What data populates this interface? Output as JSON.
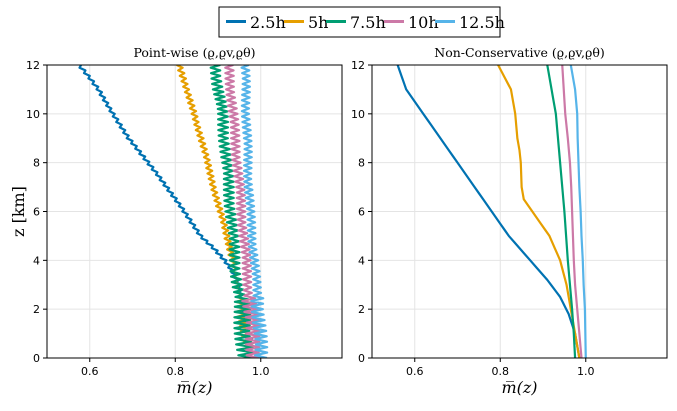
{
  "legend": {
    "entries": [
      {
        "label": "2.5h",
        "color": "#0072b2"
      },
      {
        "label": "5h",
        "color": "#e69f00"
      },
      {
        "label": "7.5h",
        "color": "#009e73"
      },
      {
        "label": "10h",
        "color": "#cc79a7"
      },
      {
        "label": "12.5h",
        "color": "#56b4e9"
      }
    ]
  },
  "shared_axes": {
    "xlabel": "m̅(z)",
    "ylabel": "z [km]",
    "xlim": [
      0.5,
      1.19
    ],
    "ylim": [
      0,
      12
    ],
    "xticks": [
      "0.6",
      "0.8",
      "1.0"
    ],
    "xtick_values": [
      0.6,
      0.8,
      1.0
    ],
    "yticks": [
      "0",
      "2",
      "4",
      "6",
      "8",
      "10",
      "12"
    ],
    "ytick_values": [
      0,
      2,
      4,
      6,
      8,
      10,
      12
    ]
  },
  "chart_data": [
    {
      "type": "line",
      "title": "Point-wise (ϱ,ϱv,ϱθ)",
      "xlabel": "m̅(z)",
      "ylabel": "z [km]",
      "xlim": [
        0.5,
        1.19
      ],
      "ylim": [
        0,
        12
      ],
      "grid": true,
      "series": [
        {
          "name": "2.5h",
          "x": [
            0.98,
            0.975,
            0.97,
            0.965,
            0.96,
            0.955,
            0.95,
            0.935,
            0.915,
            0.89,
            0.86,
            0.82,
            0.76,
            0.69,
            0.62,
            0.575
          ],
          "y": [
            0,
            0.5,
            1,
            1.5,
            2,
            2.5,
            3,
            3.5,
            4,
            4.5,
            5,
            6,
            7.5,
            9,
            11,
            12
          ],
          "jitter": 0.005
        },
        {
          "name": "5h",
          "x": [
            0.975,
            0.97,
            0.965,
            0.96,
            0.955,
            0.95,
            0.945,
            0.935,
            0.92,
            0.905,
            0.89,
            0.875,
            0.86,
            0.845,
            0.825,
            0.81
          ],
          "y": [
            0,
            0.5,
            1,
            1.5,
            2,
            2.5,
            3,
            4,
            5,
            6,
            7,
            8,
            9,
            10,
            11,
            12
          ],
          "jitter": 0.007
        },
        {
          "name": "7.5h",
          "x": [
            0.965,
            0.96,
            0.955,
            0.95,
            0.945,
            0.94,
            0.935,
            0.93,
            0.925,
            0.92,
            0.915,
            0.91,
            0.905,
            0.9,
            0.895
          ],
          "y": [
            0,
            1,
            2,
            2.5,
            3,
            4,
            5,
            6,
            7,
            8,
            9,
            10,
            10.5,
            11,
            12
          ],
          "jitter": 0.013
        },
        {
          "name": "10h",
          "x": [
            0.985,
            0.98,
            0.975,
            0.97,
            0.965,
            0.96,
            0.955,
            0.95,
            0.945,
            0.94,
            0.935,
            0.93,
            0.925
          ],
          "y": [
            0,
            1,
            2,
            3,
            4,
            5,
            6,
            7,
            8,
            9,
            10,
            11,
            12
          ],
          "jitter": 0.011
        },
        {
          "name": "12.5h",
          "x": [
            1.0,
            0.998,
            0.995,
            0.99,
            0.985,
            0.98,
            0.975,
            0.972,
            0.97,
            0.968,
            0.966,
            0.965,
            0.963
          ],
          "y": [
            0,
            1,
            2,
            3,
            4,
            5,
            6,
            7,
            8,
            9,
            10,
            11,
            12
          ],
          "jitter": 0.01
        }
      ]
    },
    {
      "type": "line",
      "title": "Non-Conservative (ϱ,ϱv,ϱθ)",
      "xlabel": "m̅(z)",
      "ylabel": "",
      "xlim": [
        0.5,
        1.19
      ],
      "ylim": [
        0,
        12
      ],
      "grid": true,
      "series": [
        {
          "name": "2.5h",
          "x": [
            0.985,
            0.975,
            0.96,
            0.94,
            0.91,
            0.87,
            0.82,
            0.78,
            0.74,
            0.7,
            0.66,
            0.62,
            0.58,
            0.56
          ],
          "y": [
            0,
            1,
            1.8,
            2.5,
            3.2,
            4,
            5,
            6,
            7,
            8,
            9,
            10,
            11,
            12
          ],
          "jitter": 0
        },
        {
          "name": "5h",
          "x": [
            0.985,
            0.975,
            0.965,
            0.955,
            0.94,
            0.915,
            0.875,
            0.855,
            0.85,
            0.848,
            0.845,
            0.84,
            0.835,
            0.825,
            0.81,
            0.795
          ],
          "y": [
            0,
            1,
            2,
            3,
            4,
            5,
            6,
            6.5,
            7,
            8,
            8.5,
            9,
            10,
            11,
            11.5,
            12
          ],
          "jitter": 0
        },
        {
          "name": "7.5h",
          "x": [
            0.975,
            0.972,
            0.968,
            0.963,
            0.958,
            0.954,
            0.95,
            0.945,
            0.94,
            0.935,
            0.93,
            0.925,
            0.92,
            0.915,
            0.91
          ],
          "y": [
            0,
            1,
            2,
            3,
            4,
            5,
            6,
            7,
            8,
            9,
            10,
            10.5,
            11,
            11.5,
            12
          ],
          "jitter": 0
        },
        {
          "name": "10h",
          "x": [
            0.99,
            0.985,
            0.98,
            0.975,
            0.972,
            0.97,
            0.968,
            0.966,
            0.963,
            0.958,
            0.952,
            0.945
          ],
          "y": [
            0,
            1,
            2,
            3,
            4,
            5,
            6,
            7,
            8,
            9,
            10,
            12
          ],
          "jitter": 0
        },
        {
          "name": "12.5h",
          "x": [
            1.0,
            0.999,
            0.998,
            0.995,
            0.993,
            0.99,
            0.988,
            0.985,
            0.983,
            0.981,
            0.98,
            0.975,
            0.965
          ],
          "y": [
            0,
            1,
            2,
            3,
            4,
            5,
            6,
            7,
            8,
            9,
            10,
            11,
            12
          ],
          "jitter": 0
        }
      ]
    }
  ]
}
